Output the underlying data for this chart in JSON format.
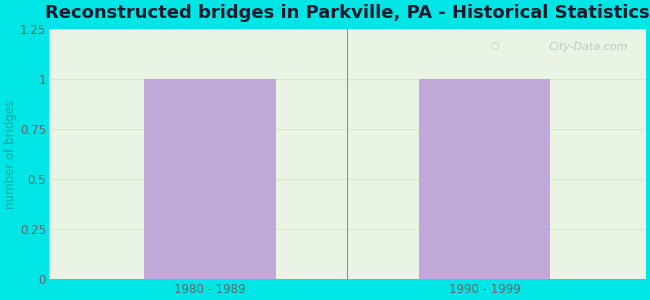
{
  "title": "Reconstructed bridges in Parkville, PA - Historical Statistics",
  "categories": [
    "1980 - 1989",
    "1990 - 1999"
  ],
  "values": [
    1,
    1
  ],
  "bar_color": "#c0a8d8",
  "ylabel": "number of bridges",
  "ylim": [
    0,
    1.25
  ],
  "yticks": [
    0,
    0.25,
    0.5,
    0.75,
    1.0,
    1.25
  ],
  "background_outer": "#00e5e5",
  "background_inner_color": "#eaf4e4",
  "title_fontsize": 13,
  "title_color": "#1a1a2e",
  "axis_label_color": "#00aaaa",
  "tick_label_color": "#666666",
  "watermark": "City-Data.com",
  "grid_color": "#d8e8d0",
  "bar_positions": [
    0.27,
    0.73
  ],
  "bar_width": 0.22
}
